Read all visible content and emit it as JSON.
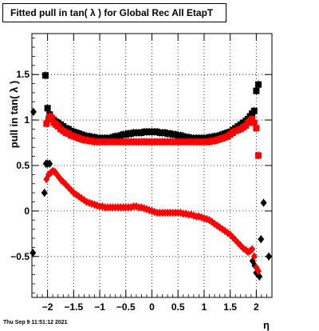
{
  "chart_data": {
    "type": "scatter",
    "title": "Fitted pull in tan( λ ) for Global Rec All EtapT",
    "xlabel": "η",
    "ylabel": "pull in tan( λ )",
    "xlim": [
      -2.3,
      2.3
    ],
    "ylim": [
      -0.95,
      1.95
    ],
    "xticks": [
      -2,
      -1.5,
      -1,
      -0.5,
      0,
      0.5,
      1,
      1.5,
      2
    ],
    "xtick_labels": [
      "−2",
      "−1.5",
      "−1",
      "−0.5",
      "0",
      "0.5",
      "1",
      "1.5",
      "2"
    ],
    "yticks": [
      -0.5,
      0,
      0.5,
      1,
      1.5
    ],
    "ytick_labels": [
      "−0.5",
      "0",
      "0.5",
      "1",
      "1.5"
    ],
    "grid": true,
    "legend": "none",
    "colors": {
      "black": "#000000",
      "red": "#ff0000"
    },
    "series": [
      {
        "marker": "square",
        "color": "#000000",
        "points": [
          [
            -2.04,
            1.49
          ],
          [
            -2.0,
            1.13
          ],
          [
            -1.96,
            1.06
          ],
          [
            -1.92,
            1.02
          ],
          [
            -1.88,
            1.0
          ],
          [
            -1.84,
            0.98
          ],
          [
            -1.8,
            0.97
          ],
          [
            -1.75,
            0.95
          ],
          [
            -1.7,
            0.93
          ],
          [
            -1.65,
            0.91
          ],
          [
            -1.6,
            0.9
          ],
          [
            -1.55,
            0.88
          ],
          [
            -1.5,
            0.87
          ],
          [
            -1.45,
            0.86
          ],
          [
            -1.4,
            0.85
          ],
          [
            -1.35,
            0.84
          ],
          [
            -1.3,
            0.83
          ],
          [
            -1.25,
            0.82
          ],
          [
            -1.2,
            0.82
          ],
          [
            -1.15,
            0.81
          ],
          [
            -1.1,
            0.81
          ],
          [
            -1.05,
            0.8
          ],
          [
            -1.0,
            0.8
          ],
          [
            -0.95,
            0.8
          ],
          [
            -0.9,
            0.8
          ],
          [
            -0.85,
            0.8
          ],
          [
            -0.8,
            0.8
          ],
          [
            -0.75,
            0.81
          ],
          [
            -0.7,
            0.82
          ],
          [
            -0.65,
            0.82
          ],
          [
            -0.6,
            0.83
          ],
          [
            -0.55,
            0.84
          ],
          [
            -0.5,
            0.84
          ],
          [
            -0.45,
            0.85
          ],
          [
            -0.4,
            0.85
          ],
          [
            -0.35,
            0.86
          ],
          [
            -0.3,
            0.86
          ],
          [
            -0.25,
            0.86
          ],
          [
            -0.2,
            0.86
          ],
          [
            -0.15,
            0.87
          ],
          [
            -0.1,
            0.87
          ],
          [
            -0.05,
            0.87
          ],
          [
            0.0,
            0.87
          ],
          [
            0.05,
            0.87
          ],
          [
            0.1,
            0.87
          ],
          [
            0.15,
            0.86
          ],
          [
            0.2,
            0.86
          ],
          [
            0.25,
            0.86
          ],
          [
            0.3,
            0.85
          ],
          [
            0.35,
            0.85
          ],
          [
            0.4,
            0.84
          ],
          [
            0.45,
            0.84
          ],
          [
            0.5,
            0.83
          ],
          [
            0.55,
            0.83
          ],
          [
            0.6,
            0.82
          ],
          [
            0.65,
            0.81
          ],
          [
            0.7,
            0.81
          ],
          [
            0.75,
            0.8
          ],
          [
            0.8,
            0.8
          ],
          [
            0.85,
            0.8
          ],
          [
            0.9,
            0.8
          ],
          [
            0.95,
            0.8
          ],
          [
            1.0,
            0.8
          ],
          [
            1.05,
            0.8
          ],
          [
            1.1,
            0.81
          ],
          [
            1.15,
            0.81
          ],
          [
            1.2,
            0.82
          ],
          [
            1.25,
            0.82
          ],
          [
            1.3,
            0.83
          ],
          [
            1.35,
            0.84
          ],
          [
            1.4,
            0.85
          ],
          [
            1.45,
            0.86
          ],
          [
            1.5,
            0.87
          ],
          [
            1.55,
            0.89
          ],
          [
            1.6,
            0.91
          ],
          [
            1.65,
            0.93
          ],
          [
            1.7,
            0.95
          ],
          [
            1.75,
            0.97
          ],
          [
            1.8,
            0.99
          ],
          [
            1.84,
            1.01
          ],
          [
            1.88,
            1.04
          ],
          [
            1.92,
            1.07
          ],
          [
            1.96,
            1.1
          ],
          [
            2.0,
            1.32
          ],
          [
            2.04,
            1.39
          ]
        ]
      },
      {
        "marker": "square",
        "color": "#ff0000",
        "points": [
          [
            -2.02,
            0.96
          ],
          [
            -1.98,
            1.01
          ],
          [
            -1.95,
            1.04
          ],
          [
            -1.92,
            1.02
          ],
          [
            -1.88,
            0.97
          ],
          [
            -1.84,
            0.95
          ],
          [
            -1.8,
            0.93
          ],
          [
            -1.75,
            0.9
          ],
          [
            -1.7,
            0.88
          ],
          [
            -1.65,
            0.86
          ],
          [
            -1.6,
            0.85
          ],
          [
            -1.55,
            0.83
          ],
          [
            -1.5,
            0.82
          ],
          [
            -1.45,
            0.81
          ],
          [
            -1.4,
            0.8
          ],
          [
            -1.35,
            0.79
          ],
          [
            -1.3,
            0.78
          ],
          [
            -1.25,
            0.78
          ],
          [
            -1.2,
            0.77
          ],
          [
            -1.15,
            0.77
          ],
          [
            -1.1,
            0.76
          ],
          [
            -1.05,
            0.76
          ],
          [
            -1.0,
            0.76
          ],
          [
            -0.95,
            0.76
          ],
          [
            -0.9,
            0.76
          ],
          [
            -0.85,
            0.76
          ],
          [
            -0.8,
            0.76
          ],
          [
            -0.75,
            0.76
          ],
          [
            -0.7,
            0.76
          ],
          [
            -0.65,
            0.76
          ],
          [
            -0.6,
            0.76
          ],
          [
            -0.55,
            0.76
          ],
          [
            -0.5,
            0.76
          ],
          [
            -0.45,
            0.76
          ],
          [
            -0.4,
            0.76
          ],
          [
            -0.35,
            0.76
          ],
          [
            -0.3,
            0.76
          ],
          [
            -0.25,
            0.76
          ],
          [
            -0.2,
            0.76
          ],
          [
            -0.15,
            0.76
          ],
          [
            -0.1,
            0.76
          ],
          [
            -0.05,
            0.76
          ],
          [
            0.0,
            0.76
          ],
          [
            0.05,
            0.76
          ],
          [
            0.1,
            0.76
          ],
          [
            0.15,
            0.76
          ],
          [
            0.2,
            0.76
          ],
          [
            0.25,
            0.76
          ],
          [
            0.3,
            0.76
          ],
          [
            0.35,
            0.76
          ],
          [
            0.4,
            0.76
          ],
          [
            0.45,
            0.76
          ],
          [
            0.5,
            0.76
          ],
          [
            0.55,
            0.76
          ],
          [
            0.6,
            0.76
          ],
          [
            0.65,
            0.76
          ],
          [
            0.7,
            0.76
          ],
          [
            0.75,
            0.76
          ],
          [
            0.8,
            0.76
          ],
          [
            0.85,
            0.76
          ],
          [
            0.9,
            0.76
          ],
          [
            0.95,
            0.76
          ],
          [
            1.0,
            0.76
          ],
          [
            1.05,
            0.76
          ],
          [
            1.1,
            0.76
          ],
          [
            1.15,
            0.77
          ],
          [
            1.2,
            0.77
          ],
          [
            1.25,
            0.78
          ],
          [
            1.3,
            0.79
          ],
          [
            1.35,
            0.8
          ],
          [
            1.4,
            0.81
          ],
          [
            1.45,
            0.82
          ],
          [
            1.5,
            0.84
          ],
          [
            1.55,
            0.86
          ],
          [
            1.6,
            0.88
          ],
          [
            1.65,
            0.89
          ],
          [
            1.7,
            0.9
          ],
          [
            1.75,
            0.92
          ],
          [
            1.8,
            0.94
          ],
          [
            1.84,
            0.97
          ],
          [
            1.88,
            0.99
          ],
          [
            1.92,
            1.01
          ],
          [
            1.96,
            0.97
          ],
          [
            2.0,
            0.91
          ],
          [
            2.04,
            0.61
          ]
        ]
      },
      {
        "marker": "diamond",
        "color": "#000000",
        "points": [
          [
            -2.27,
            1.09
          ],
          [
            -2.28,
            -0.46
          ],
          [
            -2.06,
            0.2
          ],
          [
            -2.03,
            0.52
          ],
          [
            -2.0,
            0.52
          ],
          [
            -1.96,
            0.52
          ],
          [
            2.06,
            -0.72
          ],
          [
            2.09,
            -0.31
          ],
          [
            2.14,
            0.09
          ],
          [
            2.24,
            -0.5
          ],
          [
            1.97,
            -0.6
          ],
          [
            1.93,
            -0.55
          ],
          [
            2.0,
            -0.68
          ]
        ]
      },
      {
        "marker": "diamond",
        "color": "#ff0000",
        "points": [
          [
            -2.02,
            0.35
          ],
          [
            -1.98,
            0.4
          ],
          [
            -1.94,
            0.42
          ],
          [
            -1.9,
            0.44
          ],
          [
            -1.86,
            0.43
          ],
          [
            -1.82,
            0.4
          ],
          [
            -1.78,
            0.37
          ],
          [
            -1.74,
            0.34
          ],
          [
            -1.7,
            0.32
          ],
          [
            -1.65,
            0.29
          ],
          [
            -1.6,
            0.26
          ],
          [
            -1.55,
            0.23
          ],
          [
            -1.5,
            0.2
          ],
          [
            -1.45,
            0.18
          ],
          [
            -1.4,
            0.16
          ],
          [
            -1.35,
            0.14
          ],
          [
            -1.3,
            0.12
          ],
          [
            -1.25,
            0.1
          ],
          [
            -1.2,
            0.09
          ],
          [
            -1.15,
            0.08
          ],
          [
            -1.1,
            0.07
          ],
          [
            -1.05,
            0.06
          ],
          [
            -1.0,
            0.05
          ],
          [
            -0.95,
            0.05
          ],
          [
            -0.9,
            0.04
          ],
          [
            -0.85,
            0.04
          ],
          [
            -0.8,
            0.04
          ],
          [
            -0.75,
            0.04
          ],
          [
            -0.7,
            0.04
          ],
          [
            -0.65,
            0.04
          ],
          [
            -0.6,
            0.04
          ],
          [
            -0.55,
            0.04
          ],
          [
            -0.5,
            0.04
          ],
          [
            -0.45,
            0.04
          ],
          [
            -0.4,
            0.04
          ],
          [
            -0.35,
            0.05
          ],
          [
            -0.3,
            0.05
          ],
          [
            -0.25,
            0.04
          ],
          [
            -0.2,
            0.04
          ],
          [
            -0.15,
            0.03
          ],
          [
            -0.1,
            0.02
          ],
          [
            -0.05,
            0.01
          ],
          [
            0.0,
            0.0
          ],
          [
            0.05,
            -0.01
          ],
          [
            0.1,
            -0.02
          ],
          [
            0.15,
            -0.02
          ],
          [
            0.2,
            -0.02
          ],
          [
            0.25,
            -0.02
          ],
          [
            0.3,
            -0.02
          ],
          [
            0.35,
            -0.02
          ],
          [
            0.4,
            -0.02
          ],
          [
            0.45,
            -0.02
          ],
          [
            0.5,
            -0.02
          ],
          [
            0.55,
            -0.02
          ],
          [
            0.6,
            -0.03
          ],
          [
            0.65,
            -0.03
          ],
          [
            0.7,
            -0.04
          ],
          [
            0.75,
            -0.04
          ],
          [
            0.8,
            -0.05
          ],
          [
            0.85,
            -0.06
          ],
          [
            0.9,
            -0.06
          ],
          [
            0.95,
            -0.07
          ],
          [
            1.0,
            -0.08
          ],
          [
            1.05,
            -0.09
          ],
          [
            1.1,
            -0.1
          ],
          [
            1.15,
            -0.12
          ],
          [
            1.2,
            -0.14
          ],
          [
            1.25,
            -0.16
          ],
          [
            1.3,
            -0.18
          ],
          [
            1.35,
            -0.2
          ],
          [
            1.4,
            -0.22
          ],
          [
            1.45,
            -0.24
          ],
          [
            1.5,
            -0.26
          ],
          [
            1.55,
            -0.29
          ],
          [
            1.6,
            -0.32
          ],
          [
            1.65,
            -0.35
          ],
          [
            1.7,
            -0.38
          ],
          [
            1.75,
            -0.41
          ],
          [
            1.8,
            -0.43
          ],
          [
            1.84,
            -0.45
          ],
          [
            1.88,
            -0.44
          ],
          [
            1.92,
            -0.42
          ],
          [
            1.96,
            -0.5
          ],
          [
            2.0,
            -0.62
          ],
          [
            2.04,
            -0.66
          ]
        ]
      }
    ]
  },
  "footer": {
    "timestamp": "Thu Sep  9 11:51:12 2021"
  }
}
